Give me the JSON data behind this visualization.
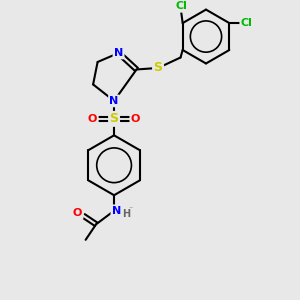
{
  "bg_color": "#e8e8e8",
  "bond_color": "#000000",
  "bond_width": 1.5,
  "atom_colors": {
    "N": "#0000ff",
    "S_thio": "#cccc00",
    "S_sulfonyl": "#cccc00",
    "O": "#ff0000",
    "Cl": "#00bb00",
    "C": "#000000",
    "H": "#666666"
  },
  "font_size": 8,
  "fig_width": 3.0,
  "fig_height": 3.0,
  "dpi": 100
}
